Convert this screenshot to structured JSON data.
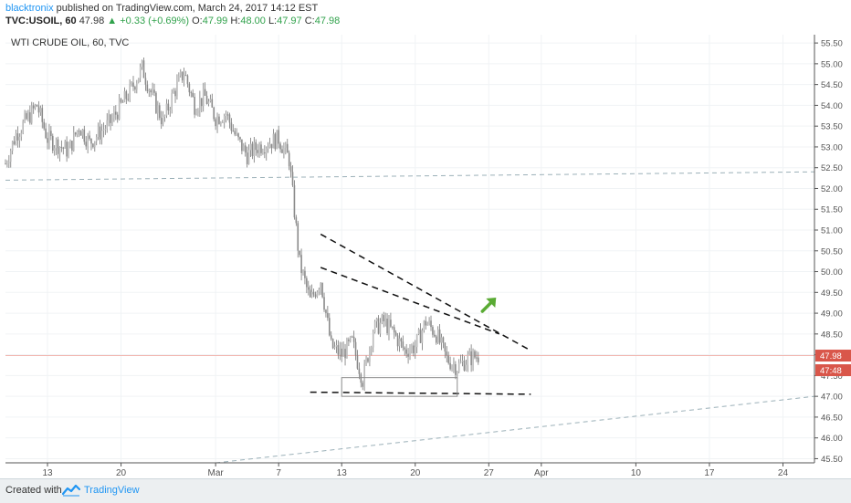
{
  "header": {
    "author": "blacktronix",
    "published_text": "published on TradingView.com, March 24, 2017 14:12 EST",
    "symbol": "TVC:USOIL, 60",
    "last": "47.98",
    "change": "▲ +0.33 (+0.69%)",
    "o_label": "O:",
    "o_value": "47.99",
    "h_label": "H:",
    "h_value": "48.00",
    "l_label": "L:",
    "l_value": "47.97",
    "c_label": "C:",
    "c_value": "47.98"
  },
  "footer": {
    "created_with": "Created with",
    "brand": "TradingView"
  },
  "colors": {
    "candle": "#8a8a8a",
    "up_text": "#31a24c",
    "price_tag": "#d9564a",
    "arrow": "#5aab34"
  },
  "chart_data": {
    "type": "candlestick",
    "title": "WTI CRUDE OIL, 60, TVC",
    "ylim": [
      45.4,
      55.7
    ],
    "y_ticks": [
      45.5,
      46.0,
      46.5,
      47.0,
      47.5,
      48.0,
      48.5,
      49.0,
      49.5,
      50.0,
      50.5,
      51.0,
      51.5,
      52.0,
      52.5,
      53.0,
      53.5,
      54.0,
      54.5,
      55.0,
      55.5
    ],
    "x_ticks": [
      {
        "label": "13",
        "date": "2017-02-13"
      },
      {
        "label": "20",
        "date": "2017-02-20"
      },
      {
        "label": "Mar",
        "date": "2017-03-01"
      },
      {
        "label": "7",
        "date": "2017-03-07"
      },
      {
        "label": "13",
        "date": "2017-03-13"
      },
      {
        "label": "20",
        "date": "2017-03-20"
      },
      {
        "label": "27",
        "date": "2017-03-27"
      },
      {
        "label": "Apr",
        "date": "2017-04-01"
      },
      {
        "label": "10",
        "date": "2017-04-10"
      },
      {
        "label": "17",
        "date": "2017-04-17"
      },
      {
        "label": "24",
        "date": "2017-04-24"
      }
    ],
    "xlim": [
      "2017-02-09",
      "2017-04-27"
    ],
    "price_path": [
      [
        "2017-02-09",
        52.6
      ],
      [
        "2017-02-10",
        53.3
      ],
      [
        "2017-02-12",
        54.0
      ],
      [
        "2017-02-13",
        53.2
      ],
      [
        "2017-02-15",
        52.9
      ],
      [
        "2017-02-16",
        53.5
      ],
      [
        "2017-02-17",
        53.1
      ],
      [
        "2017-02-19",
        53.6
      ],
      [
        "2017-02-20",
        54.0
      ],
      [
        "2017-02-21",
        54.4
      ],
      [
        "2017-02-22",
        54.9
      ],
      [
        "2017-02-23",
        54.2
      ],
      [
        "2017-02-24",
        53.6
      ],
      [
        "2017-02-25",
        54.3
      ],
      [
        "2017-02-26",
        54.8
      ],
      [
        "2017-02-27",
        54.0
      ],
      [
        "2017-02-28",
        54.2
      ],
      [
        "2017-03-01",
        53.7
      ],
      [
        "2017-03-02",
        53.8
      ],
      [
        "2017-03-03",
        53.2
      ],
      [
        "2017-03-04",
        52.8
      ],
      [
        "2017-03-05",
        53.0
      ],
      [
        "2017-03-06",
        53.1
      ],
      [
        "2017-03-07",
        53.2
      ],
      [
        "2017-03-08",
        52.7
      ],
      [
        "2017-03-09",
        50.2
      ],
      [
        "2017-03-10",
        49.3
      ],
      [
        "2017-03-11",
        49.8
      ],
      [
        "2017-03-12",
        48.2
      ],
      [
        "2017-03-13",
        48.0
      ],
      [
        "2017-03-14",
        48.3
      ],
      [
        "2017-03-15",
        47.4
      ],
      [
        "2017-03-16",
        48.6
      ],
      [
        "2017-03-17",
        48.8
      ],
      [
        "2017-03-18",
        48.5
      ],
      [
        "2017-03-19",
        48.1
      ],
      [
        "2017-03-20",
        48.2
      ],
      [
        "2017-03-21",
        48.8
      ],
      [
        "2017-03-22",
        48.5
      ],
      [
        "2017-03-23",
        47.9
      ],
      [
        "2017-03-24",
        47.7
      ],
      [
        "2017-03-25",
        47.9
      ],
      [
        "2017-03-26",
        47.98
      ]
    ],
    "trendlines": [
      {
        "from": [
          "2017-02-09",
          52.2
        ],
        "to": [
          "2017-04-27",
          52.4
        ],
        "style": "dashed-gray"
      },
      {
        "from": [
          "2017-03-01",
          45.4
        ],
        "to": [
          "2017-04-27",
          47.0
        ],
        "style": "dashed-gray"
      },
      {
        "from": [
          "2017-03-11",
          50.9
        ],
        "to": [
          "2017-03-31",
          48.1
        ],
        "style": "dashed-black"
      },
      {
        "from": [
          "2017-03-11",
          50.1
        ],
        "to": [
          "2017-03-28",
          48.5
        ],
        "style": "dashed-black"
      },
      {
        "from": [
          "2017-03-10",
          47.1
        ],
        "to": [
          "2017-03-31",
          47.05
        ],
        "style": "dashed-black"
      }
    ],
    "support_box": {
      "from": [
        "2017-03-13",
        47.45
      ],
      "to": [
        "2017-03-24",
        47.0
      ]
    },
    "horizontal_line": 47.98,
    "price_labels": [
      {
        "value": 47.98,
        "text": "47.98"
      },
      {
        "value": 47.76,
        "text": "47:48"
      }
    ],
    "arrow": {
      "at": [
        "2017-03-27",
        49.2
      ],
      "direction": "up-right"
    }
  }
}
